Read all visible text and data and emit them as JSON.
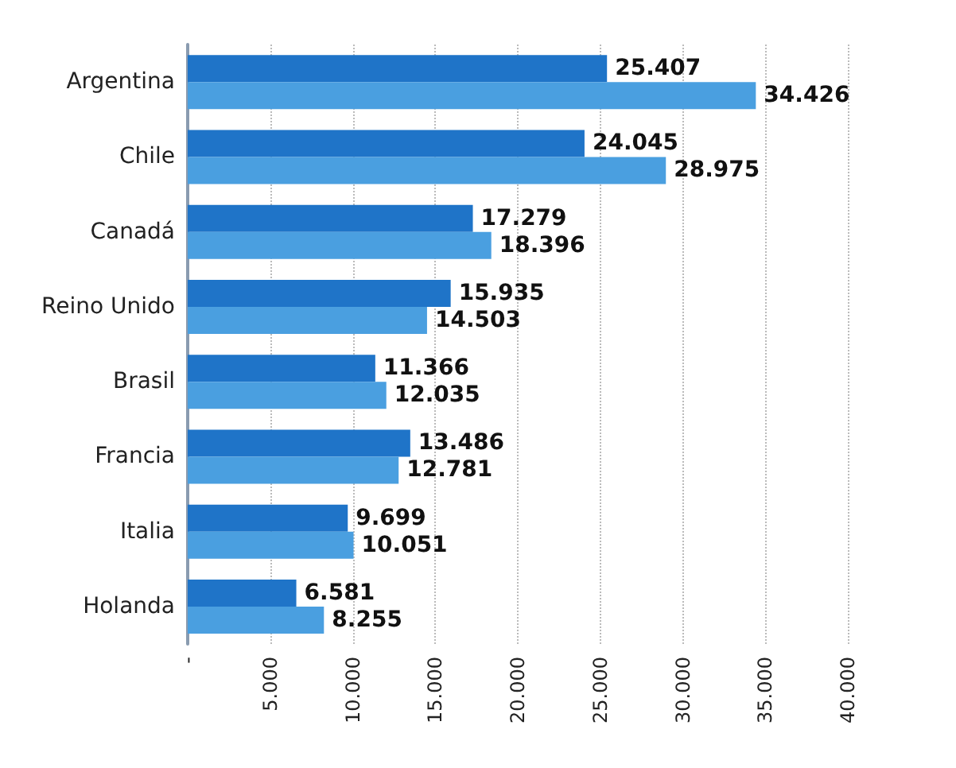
{
  "chart_data": {
    "type": "bar",
    "orientation": "horizontal",
    "categories": [
      "Argentina",
      "Chile",
      "Canadá",
      "Reino Unido",
      "Brasil",
      "Francia",
      "Italia",
      "Holanda"
    ],
    "series": [
      {
        "color": "#1f74c8",
        "values": [
          25407,
          24045,
          17279,
          15935,
          11366,
          13486,
          9699,
          6581
        ],
        "value_labels": [
          "25.407",
          "24.045",
          "17.279",
          "15.935",
          "11.366",
          "13.486",
          "9.699",
          "6.581"
        ]
      },
      {
        "color": "#4a9fe0",
        "values": [
          34426,
          28975,
          18396,
          14503,
          12035,
          12781,
          10051,
          8255
        ],
        "value_labels": [
          "34.426",
          "28.975",
          "18.396",
          "14.503",
          "12.035",
          "12.781",
          "10.051",
          "8.255"
        ]
      }
    ],
    "xlim": [
      0,
      40000
    ],
    "xticks": [
      {
        "value": 0,
        "label": "-"
      },
      {
        "value": 5000,
        "label": "5.000"
      },
      {
        "value": 10000,
        "label": "10.000"
      },
      {
        "value": 15000,
        "label": "15.000"
      },
      {
        "value": 20000,
        "label": "20.000"
      },
      {
        "value": 25000,
        "label": "25.000"
      },
      {
        "value": 30000,
        "label": "30.000"
      },
      {
        "value": 35000,
        "label": "35.000"
      },
      {
        "value": 40000,
        "label": "40.000"
      }
    ],
    "grid": "x"
  }
}
